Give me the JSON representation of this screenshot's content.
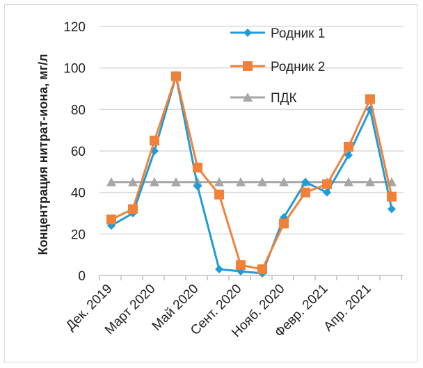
{
  "chart_data": {
    "type": "line",
    "ylabel": "Концентрация нитрат-иона, мг/л",
    "ylim": [
      0,
      120
    ],
    "yticks": [
      0,
      20,
      40,
      60,
      80,
      100,
      120
    ],
    "grid": true,
    "legend_position": "top-right",
    "x_tick_labels": [
      "Дек. 2019",
      "Март 2020",
      "Май 2020",
      "Сент. 2020",
      "Нояб. 2020",
      "Февр. 2021",
      "Апр. 2021"
    ],
    "series": [
      {
        "name": "Родник 1",
        "color": "#1f9bd7",
        "marker": "diamond",
        "values": [
          24,
          30,
          60,
          96,
          43,
          3,
          2,
          1,
          28,
          45,
          40,
          58,
          80,
          32
        ]
      },
      {
        "name": "Родник 2",
        "color": "#f0813a",
        "marker": "square",
        "values": [
          27,
          32,
          65,
          96,
          52,
          39,
          5,
          3,
          25,
          40,
          44,
          62,
          85,
          38
        ]
      },
      {
        "name": "ПДК",
        "color": "#a6a6a6",
        "marker": "triangle",
        "values": [
          45,
          45,
          45,
          45,
          45,
          45,
          45,
          45,
          45,
          45,
          45,
          45,
          45,
          45
        ]
      }
    ]
  }
}
